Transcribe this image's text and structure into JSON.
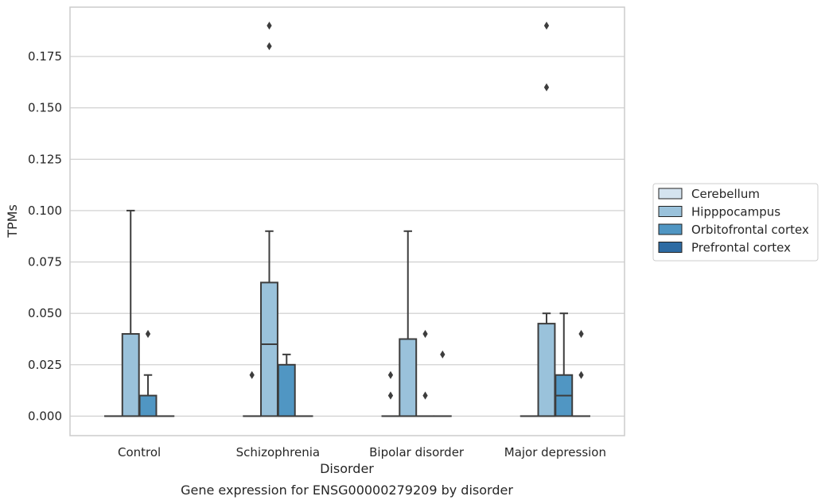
{
  "chart_data": {
    "type": "box",
    "caption": "Gene expression for ENSG00000279209 by disorder",
    "xlabel": "Disorder",
    "ylabel": "TPMs",
    "ylim": [
      -0.0095,
      0.199
    ],
    "yticks": [
      0.0,
      0.025,
      0.05,
      0.075,
      0.1,
      0.125,
      0.15,
      0.175
    ],
    "ytick_labels": [
      "0.000",
      "0.025",
      "0.050",
      "0.075",
      "0.100",
      "0.125",
      "0.150",
      "0.175"
    ],
    "grid": "horizontal",
    "legend_position": "right",
    "categories": [
      "Control",
      "Schizophrenia",
      "Bipolar disorder",
      "Major depression"
    ],
    "series": [
      {
        "name": "Cerebellum",
        "color": "#d4e3ef",
        "boxes": [
          {
            "q1": 0,
            "median": 0,
            "q3": 0,
            "whisker_low": 0,
            "whisker_high": 0,
            "outliers": []
          },
          {
            "q1": 0,
            "median": 0,
            "q3": 0,
            "whisker_low": 0,
            "whisker_high": 0,
            "outliers": [
              0.02
            ]
          },
          {
            "q1": 0,
            "median": 0,
            "q3": 0,
            "whisker_low": 0,
            "whisker_high": 0,
            "outliers": [
              0.01,
              0.02
            ]
          },
          {
            "q1": 0,
            "median": 0,
            "q3": 0,
            "whisker_low": 0,
            "whisker_high": 0,
            "outliers": []
          }
        ]
      },
      {
        "name": "Hipppocampus",
        "color": "#9ac2db",
        "boxes": [
          {
            "q1": 0,
            "median": 0,
            "q3": 0.04,
            "whisker_low": 0,
            "whisker_high": 0.1,
            "outliers": []
          },
          {
            "q1": 0,
            "median": 0.035,
            "q3": 0.065,
            "whisker_low": 0,
            "whisker_high": 0.09,
            "outliers": [
              0.18,
              0.19
            ]
          },
          {
            "q1": 0,
            "median": 0,
            "q3": 0.0375,
            "whisker_low": 0,
            "whisker_high": 0.09,
            "outliers": []
          },
          {
            "q1": 0,
            "median": 0,
            "q3": 0.045,
            "whisker_low": 0,
            "whisker_high": 0.05,
            "outliers": [
              0.16,
              0.19
            ]
          }
        ]
      },
      {
        "name": "Orbitofrontal cortex",
        "color": "#5096c3",
        "boxes": [
          {
            "q1": 0,
            "median": 0,
            "q3": 0.01,
            "whisker_low": 0,
            "whisker_high": 0.02,
            "outliers": [
              0.04
            ]
          },
          {
            "q1": 0,
            "median": 0,
            "q3": 0.025,
            "whisker_low": 0,
            "whisker_high": 0.03,
            "outliers": []
          },
          {
            "q1": 0,
            "median": 0,
            "q3": 0,
            "whisker_low": 0,
            "whisker_high": 0,
            "outliers": [
              0.01,
              0.04
            ]
          },
          {
            "q1": 0,
            "median": 0.01,
            "q3": 0.02,
            "whisker_low": 0,
            "whisker_high": 0.05,
            "outliers": []
          }
        ]
      },
      {
        "name": "Prefrontal cortex",
        "color": "#2d6ba3",
        "boxes": [
          {
            "q1": 0,
            "median": 0,
            "q3": 0,
            "whisker_low": 0,
            "whisker_high": 0,
            "outliers": []
          },
          {
            "q1": 0,
            "median": 0,
            "q3": 0,
            "whisker_low": 0,
            "whisker_high": 0,
            "outliers": []
          },
          {
            "q1": 0,
            "median": 0,
            "q3": 0,
            "whisker_low": 0,
            "whisker_high": 0,
            "outliers": [
              0.03
            ]
          },
          {
            "q1": 0,
            "median": 0,
            "q3": 0,
            "whisker_low": 0,
            "whisker_high": 0,
            "outliers": [
              0.02,
              0.04
            ]
          }
        ]
      }
    ]
  }
}
